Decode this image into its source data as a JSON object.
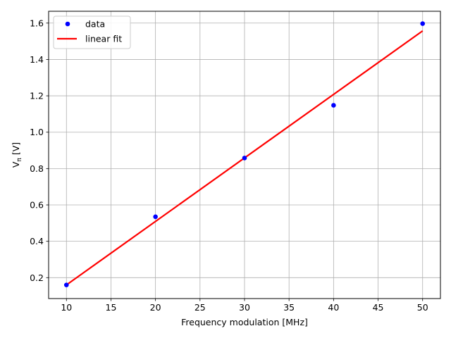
{
  "chart_data": {
    "type": "scatter",
    "xlabel": "Frequency modulation [MHz]",
    "ylabel_main": "V",
    "ylabel_sub": "π",
    "ylabel_unit": " [V]",
    "xlim": [
      8,
      52
    ],
    "ylim": [
      0.085,
      1.665
    ],
    "xticks": [
      10,
      15,
      20,
      25,
      30,
      35,
      40,
      45,
      50
    ],
    "yticks": [
      0.2,
      0.4,
      0.6,
      0.8,
      1.0,
      1.2,
      1.4,
      1.6
    ],
    "ytick_labels": [
      "0.2",
      "0.4",
      "0.6",
      "0.8",
      "1.0",
      "1.2",
      "1.4",
      "1.6"
    ],
    "grid": true,
    "legend_position": "top-left",
    "series": [
      {
        "name": "data",
        "kind": "scatter",
        "color": "#0000ff",
        "x": [
          10,
          20,
          30,
          40,
          50
        ],
        "y": [
          0.16,
          0.535,
          0.858,
          1.148,
          1.597
        ]
      },
      {
        "name": "linear fit",
        "kind": "line",
        "color": "#ff0000",
        "x": [
          10,
          50
        ],
        "y": [
          0.16,
          1.557
        ]
      }
    ]
  }
}
